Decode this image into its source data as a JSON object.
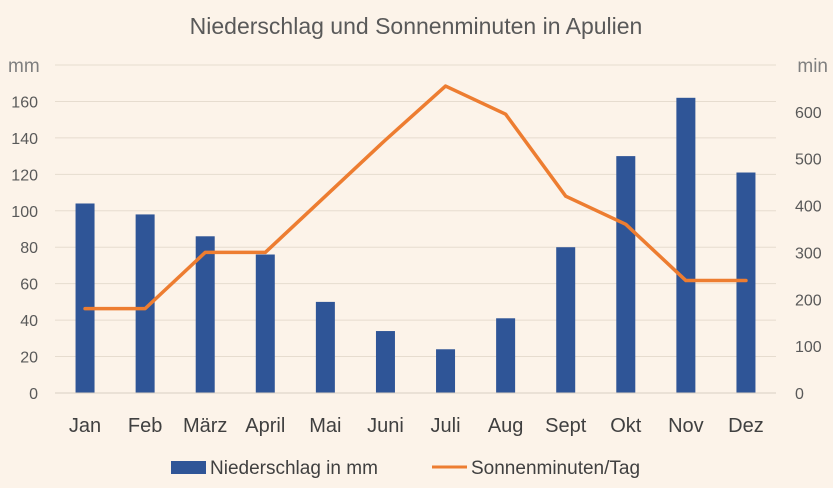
{
  "chart_data": {
    "type": "bar+line",
    "title": "Niederschlag und Sonnenminuten in Apulien",
    "y_left_unit": "mm",
    "y_right_unit": "min",
    "y_left_lim": [
      0,
      180
    ],
    "y_right_lim": [
      0,
      700
    ],
    "y_left_ticks": [
      "0",
      "20",
      "40",
      "60",
      "80",
      "100",
      "120",
      "140",
      "160"
    ],
    "y_right_ticks": [
      "0",
      "100",
      "200",
      "300",
      "400",
      "500",
      "600"
    ],
    "categories": [
      "Jan",
      "Feb",
      "März",
      "April",
      "Mai",
      "Juni",
      "Juli",
      "Aug",
      "Sept",
      "Okt",
      "Nov",
      "Dez"
    ],
    "series": [
      {
        "name": "Niederschlag in mm",
        "type": "bar",
        "axis": "left",
        "color": "#2f5597",
        "values": [
          104,
          98,
          86,
          76,
          50,
          34,
          24,
          41,
          80,
          130,
          162,
          121
        ]
      },
      {
        "name": "Sonnenminuten/Tag",
        "type": "line",
        "axis": "right",
        "color": "#ed7d31",
        "values": [
          180,
          180,
          300,
          300,
          420,
          540,
          655,
          595,
          420,
          360,
          240,
          240
        ]
      }
    ],
    "grid": true,
    "legend_position": "bottom"
  }
}
